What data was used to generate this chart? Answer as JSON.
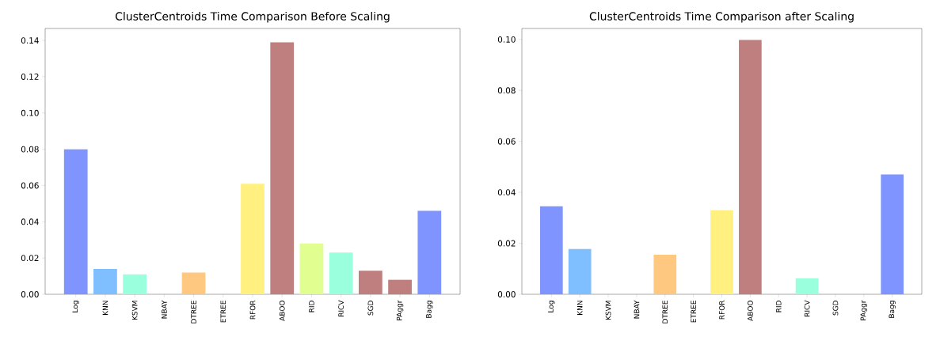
{
  "chart_data": [
    {
      "type": "bar",
      "title": "ClusterCentroids Time Comparison Before Scaling",
      "categories": [
        "Log",
        "KNN",
        "KSVM",
        "NBAY",
        "DTREE",
        "ETREE",
        "RFOR",
        "ABOO",
        "RID",
        "RICV",
        "SGD",
        "PAggr",
        "Bagg"
      ],
      "values": [
        0.08,
        0.014,
        0.011,
        0,
        0.012,
        0,
        0.061,
        0.139,
        0.028,
        0.023,
        0.013,
        0.008,
        0.046
      ],
      "colors": [
        "#7f94ff",
        "#7fbfff",
        "#99ffdd",
        "#99ffdd",
        "#ffc880",
        "#ffc880",
        "#fff07f",
        "#bf7f7f",
        "#e0ff90",
        "#99ffdd",
        "#bf7f7f",
        "#bf7f7f",
        "#7f94ff"
      ],
      "ylim": [
        0,
        0.1466
      ],
      "yticks": [
        {
          "value": 0,
          "label": "0.00"
        },
        {
          "value": 0.02,
          "label": "0.02"
        },
        {
          "value": 0.04,
          "label": "0.04"
        },
        {
          "value": 0.06,
          "label": "0.06"
        },
        {
          "value": 0.08,
          "label": "0.08"
        },
        {
          "value": 0.1,
          "label": "0.10"
        },
        {
          "value": 0.12,
          "label": "0.12"
        },
        {
          "value": 0.14,
          "label": "0.14"
        }
      ]
    },
    {
      "type": "bar",
      "title": "ClusterCentroids Time Comparison after Scaling",
      "categories": [
        "Log",
        "KNN",
        "KSVM",
        "NBAY",
        "DTREE",
        "ETREE",
        "RFOR",
        "ABOO",
        "RID",
        "RICV",
        "SGD",
        "PAggr",
        "Bagg"
      ],
      "values": [
        0.0345,
        0.0178,
        0,
        0,
        0.0155,
        0,
        0.033,
        0.0998,
        0,
        0.0063,
        0,
        0,
        0.047
      ],
      "colors": [
        "#7f94ff",
        "#7fbfff",
        "#99ffdd",
        "#99ffdd",
        "#ffc880",
        "#ffc880",
        "#fff07f",
        "#bf7f7f",
        "#e0ff90",
        "#99ffdd",
        "#bf7f7f",
        "#bf7f7f",
        "#7f94ff"
      ],
      "ylim": [
        0,
        0.1043
      ],
      "yticks": [
        {
          "value": 0,
          "label": "0.00"
        },
        {
          "value": 0.02,
          "label": "0.02"
        },
        {
          "value": 0.04,
          "label": "0.04"
        },
        {
          "value": 0.06,
          "label": "0.06"
        },
        {
          "value": 0.08,
          "label": "0.08"
        },
        {
          "value": 0.1,
          "label": "0.10"
        }
      ]
    }
  ]
}
